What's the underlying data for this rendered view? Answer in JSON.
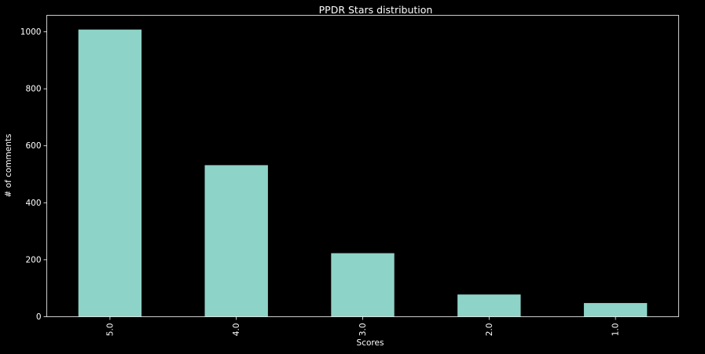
{
  "chart_data": {
    "type": "bar",
    "title": "PPDR Stars distribution",
    "xlabel": "Scores",
    "ylabel": "# of comments",
    "categories": [
      "5.0",
      "4.0",
      "3.0",
      "2.0",
      "1.0"
    ],
    "values": [
      1008,
      532,
      223,
      78,
      48
    ],
    "ylim": [
      0,
      1058
    ],
    "yticks": [
      0,
      200,
      400,
      600,
      800,
      1000
    ],
    "grid": false,
    "legend": "none",
    "colors": {
      "background": "#000000",
      "bar": "#8ed3c7",
      "axes": "#ffffff",
      "text": "#ffffff"
    }
  }
}
